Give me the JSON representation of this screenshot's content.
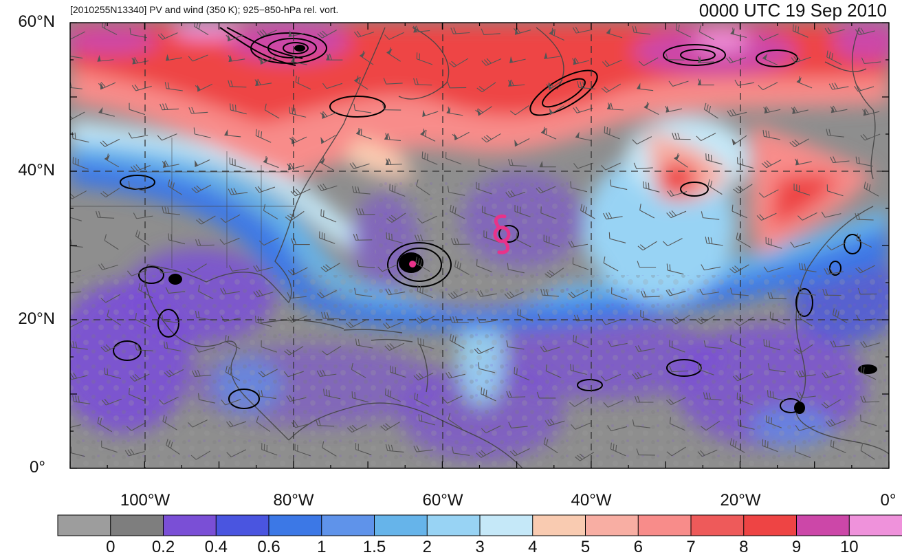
{
  "header": {
    "left_title": "[2010255N13340] PV and wind (350 K); 925−850-hPa rel. vort.",
    "right_title": "0000 UTC 19 Sep 2010"
  },
  "map": {
    "extent": {
      "lon_min": -110,
      "lon_max": 0,
      "lat_min": 0,
      "lat_max": 60
    },
    "lat_ticks": [
      {
        "value": 60,
        "label": "60°N"
      },
      {
        "value": 40,
        "label": "40°N"
      },
      {
        "value": 20,
        "label": "20°N"
      },
      {
        "value": 0,
        "label": "0°"
      }
    ],
    "lon_ticks": [
      {
        "value": -100,
        "label": "100°W"
      },
      {
        "value": -80,
        "label": "80°W"
      },
      {
        "value": -60,
        "label": "60°W"
      },
      {
        "value": -40,
        "label": "40°W"
      },
      {
        "value": -20,
        "label": "20°W"
      },
      {
        "value": 0,
        "label": "0°"
      }
    ],
    "storm_markers": [
      {
        "lon": -64,
        "lat": 27.5,
        "type": "hurricane",
        "color": "#e8338a"
      },
      {
        "lon": -52,
        "lat": 31.5,
        "type": "hurricane",
        "color": "#e8338a"
      }
    ]
  },
  "colorbar": {
    "levels": [
      "0",
      "0.2",
      "0.4",
      "0.6",
      "1",
      "1.5",
      "2",
      "3",
      "4",
      "5",
      "6",
      "7",
      "8",
      "9",
      "10"
    ],
    "colors": [
      "#9d9d9d",
      "#7e7e7e",
      "#7a4fd6",
      "#4a55e0",
      "#3c78e6",
      "#5f93ea",
      "#66b4ea",
      "#98d3f4",
      "#c5e8f8",
      "#f9cbb1",
      "#f8aea3",
      "#f88c8a",
      "#ee5a5a",
      "#ee4444",
      "#cc47a8",
      "#ef92db"
    ]
  }
}
